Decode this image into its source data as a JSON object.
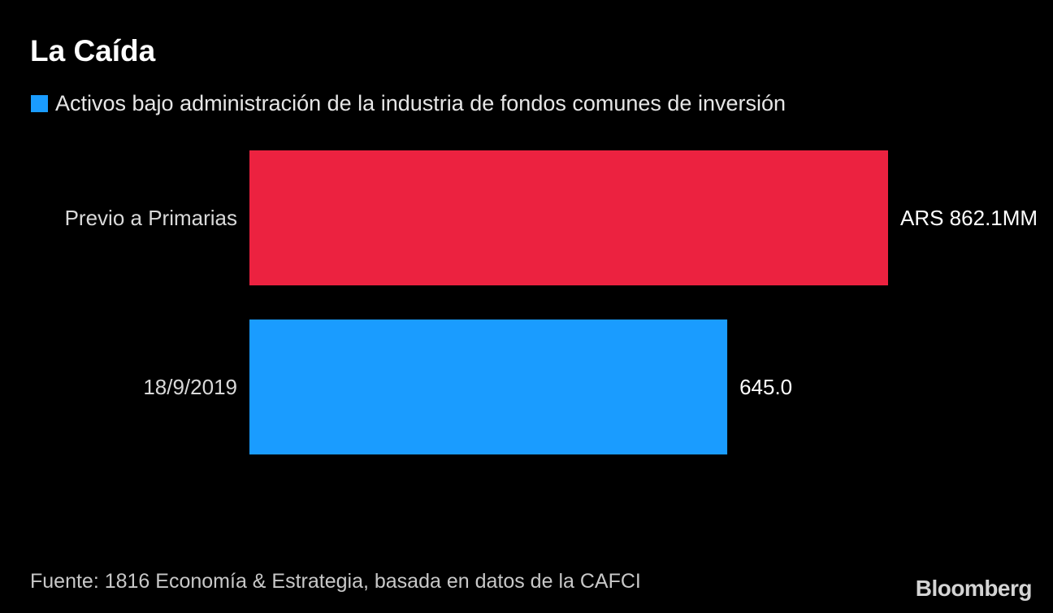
{
  "colors": {
    "background": "#000000",
    "legend_swatch": "#1a9cff"
  },
  "chart_data": {
    "type": "bar",
    "orientation": "horizontal",
    "title": "La Caída",
    "legend": [
      "Activos bajo administración de la industria de fondos comunes de inversión"
    ],
    "categories": [
      "Previo a Primarias",
      "18/9/2019"
    ],
    "values": [
      862.1,
      645.0
    ],
    "value_labels": [
      "ARS 862.1MM",
      "645.0"
    ],
    "bar_colors": [
      "#ec2240",
      "#1a9cff"
    ],
    "xlim": [
      0,
      862.1
    ],
    "xlabel": "",
    "ylabel": "",
    "grid": false,
    "source": "Fuente: 1816 Economía & Estrategia, basada en datos de la CAFCI"
  },
  "branding": {
    "logo_text": "Bloomberg"
  }
}
